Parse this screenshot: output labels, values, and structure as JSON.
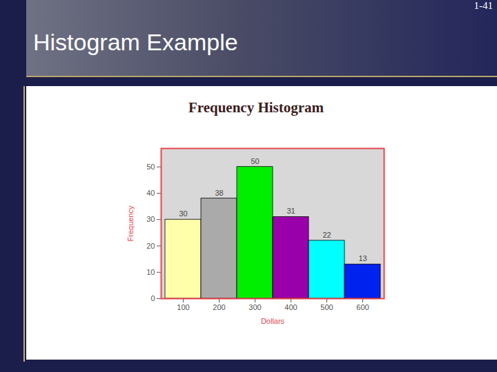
{
  "page_title": "Histogram Example",
  "slide_number": "1-41",
  "chart_data": {
    "type": "bar",
    "title": "Frequency Histogram",
    "categories": [
      "100",
      "200",
      "300",
      "400",
      "500",
      "600"
    ],
    "values": [
      30,
      38,
      50,
      31,
      22,
      13
    ],
    "colors": [
      "#ffffaa",
      "#aaaaaa",
      "#00ee00",
      "#9900aa",
      "#00ffff",
      "#0022ee"
    ],
    "x_label": "Dollars",
    "y_label": "Frequency",
    "ylim": [
      0,
      57
    ],
    "yticks": [
      0,
      10,
      20,
      30,
      40,
      50
    ],
    "grid": false,
    "data_labels": true
  }
}
